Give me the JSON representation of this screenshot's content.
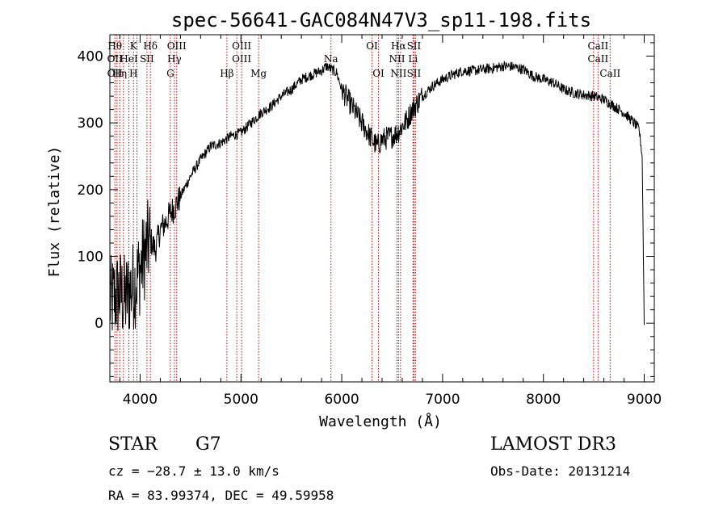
{
  "chart_data": {
    "type": "line",
    "title": "spec-56641-GAC084N47V3_sp11-198.fits",
    "xlabel": "Wavelength (Å)",
    "ylabel": "Flux (relative)",
    "xlim": [
      3700,
      9100
    ],
    "ylim": [
      -88,
      432
    ],
    "xticks": [
      4000,
      5000,
      6000,
      7000,
      8000,
      9000
    ],
    "yticks": [
      0,
      100,
      200,
      300,
      400
    ],
    "grid": false,
    "series": [
      {
        "line_color": "#000000",
        "x": [
          3700,
          3750,
          3800,
          3850,
          3900,
          3950,
          4000,
          4050,
          4100,
          4150,
          4200,
          4250,
          4300,
          4350,
          4400,
          4500,
          4600,
          4700,
          4800,
          4900,
          5000,
          5100,
          5200,
          5300,
          5400,
          5500,
          5600,
          5700,
          5800,
          5850,
          5900,
          5950,
          6000,
          6100,
          6200,
          6300,
          6350,
          6400,
          6500,
          6550,
          6600,
          6650,
          6700,
          6800,
          6900,
          7000,
          7100,
          7200,
          7300,
          7400,
          7500,
          7600,
          7700,
          7800,
          7900,
          8000,
          8100,
          8200,
          8300,
          8400,
          8500,
          8600,
          8700,
          8800,
          8900,
          8950,
          8980,
          9000
        ],
        "y": [
          30,
          40,
          45,
          35,
          50,
          60,
          80,
          105,
          125,
          110,
          140,
          150,
          165,
          175,
          190,
          220,
          245,
          265,
          270,
          280,
          285,
          300,
          315,
          325,
          340,
          350,
          365,
          372,
          378,
          385,
          380,
          375,
          350,
          325,
          300,
          275,
          265,
          275,
          280,
          285,
          295,
          305,
          320,
          340,
          355,
          365,
          372,
          378,
          378,
          380,
          382,
          385,
          384,
          380,
          370,
          365,
          360,
          350,
          345,
          342,
          340,
          335,
          325,
          315,
          300,
          290,
          250,
          0
        ]
      }
    ],
    "line_markers": [
      {
        "x": 3750,
        "labels": [
          "Hθ",
          "OII",
          "OII"
        ]
      },
      {
        "x": 3771,
        "labels": [
          "",
          "",
          ""
        ]
      },
      {
        "x": 3798,
        "labels": [
          "",
          "",
          "Hη"
        ]
      },
      {
        "x": 3835,
        "labels": [
          "",
          "",
          ""
        ]
      },
      {
        "x": 3889,
        "labels": [
          "",
          "HeI",
          ""
        ]
      },
      {
        "x": 3934,
        "labels": [
          "K",
          "",
          "H"
        ]
      },
      {
        "x": 3969,
        "labels": [
          "",
          "",
          ""
        ]
      },
      {
        "x": 4068,
        "labels": [
          "",
          "SII",
          ""
        ]
      },
      {
        "x": 4102,
        "labels": [
          "Hδ",
          "",
          ""
        ]
      },
      {
        "x": 4300,
        "labels": [
          "",
          "",
          "G"
        ]
      },
      {
        "x": 4340,
        "labels": [
          "",
          "Hγ",
          ""
        ]
      },
      {
        "x": 4363,
        "labels": [
          "OIII",
          "",
          ""
        ]
      },
      {
        "x": 4861,
        "labels": [
          "",
          "",
          "Hβ"
        ]
      },
      {
        "x": 4959,
        "labels": [
          "",
          "",
          ""
        ]
      },
      {
        "x": 5007,
        "labels": [
          "OIII",
          "OIII",
          ""
        ]
      },
      {
        "x": 5175,
        "labels": [
          "",
          "",
          "Mg"
        ]
      },
      {
        "x": 5893,
        "labels": [
          "",
          "Na",
          ""
        ]
      },
      {
        "x": 6300,
        "labels": [
          "OI",
          "",
          ""
        ]
      },
      {
        "x": 6364,
        "labels": [
          "",
          "",
          "OI"
        ]
      },
      {
        "x": 6548,
        "labels": [
          "",
          "NII",
          ""
        ]
      },
      {
        "x": 6563,
        "labels": [
          "Hα",
          "",
          "NII"
        ]
      },
      {
        "x": 6583,
        "labels": [
          "",
          "",
          ""
        ]
      },
      {
        "x": 6707,
        "labels": [
          "",
          "Li",
          ""
        ]
      },
      {
        "x": 6716,
        "labels": [
          "SII",
          "",
          "SII"
        ]
      },
      {
        "x": 6731,
        "labels": [
          "",
          "",
          ""
        ]
      },
      {
        "x": 8498,
        "labels": [
          "",
          "",
          ""
        ]
      },
      {
        "x": 8542,
        "labels": [
          "CaII",
          "CaII",
          ""
        ]
      },
      {
        "x": 8662,
        "labels": [
          "",
          "",
          "CaII"
        ]
      }
    ],
    "marker_color": "#cc0000"
  },
  "info": {
    "object_class": "STAR",
    "subclass": "G7",
    "survey": "LAMOST DR3",
    "redshift_text": "cz = −28.7 ± 13.0 km/s",
    "obs_date_text": "Obs-Date: 20131214",
    "coords_text": "RA =  83.99374, DEC =  49.59958"
  }
}
